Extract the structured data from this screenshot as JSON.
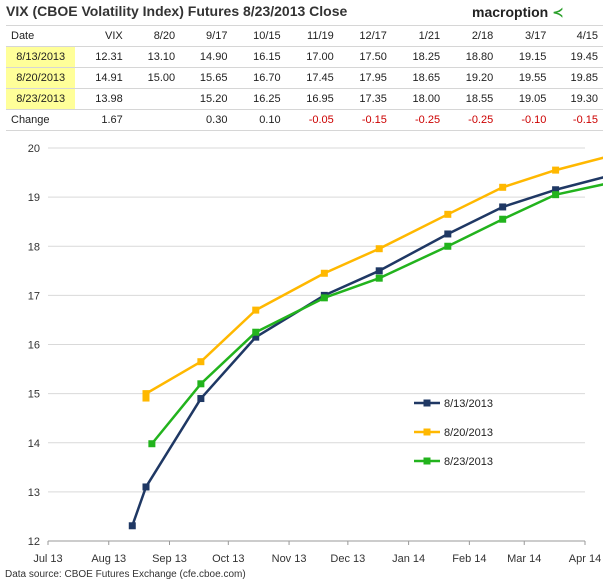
{
  "title": "VIX (CBOE Volatility Index) Futures 8/23/2013 Close",
  "brand": {
    "name": "macroption",
    "arrow": "≺"
  },
  "table": {
    "headers": [
      "Date",
      "VIX",
      "8/20",
      "9/17",
      "10/15",
      "11/19",
      "12/17",
      "1/21",
      "2/18",
      "3/17",
      "4/15"
    ],
    "rows": [
      {
        "label": "8/13/2013",
        "values": [
          "12.31",
          "13.10",
          "14.90",
          "16.15",
          "17.00",
          "17.50",
          "18.25",
          "18.80",
          "19.15",
          "19.45"
        ]
      },
      {
        "label": "8/20/2013",
        "values": [
          "14.91",
          "15.00",
          "15.65",
          "16.70",
          "17.45",
          "17.95",
          "18.65",
          "19.20",
          "19.55",
          "19.85"
        ]
      },
      {
        "label": "8/23/2013",
        "values": [
          "13.98",
          "",
          "15.20",
          "16.25",
          "16.95",
          "17.35",
          "18.00",
          "18.55",
          "19.05",
          "19.30"
        ]
      }
    ],
    "change": {
      "label": "Change",
      "values": [
        "1.67",
        "",
        "0.30",
        "0.10",
        "-0.05",
        "-0.15",
        "-0.25",
        "-0.25",
        "-0.10",
        "-0.15"
      ]
    }
  },
  "chart_data": {
    "type": "line",
    "x_ticks": [
      "Jul 13",
      "Aug 13",
      "Sep 13",
      "Oct 13",
      "Nov 13",
      "Dec 13",
      "Jan 14",
      "Feb 14",
      "Mar 14",
      "Apr 14"
    ],
    "ylim": [
      12,
      20
    ],
    "y_ticks": [
      12,
      13,
      14,
      15,
      16,
      17,
      18,
      19,
      20
    ],
    "grid": "horizontal",
    "legend_position": "lower-right",
    "series": [
      {
        "name": "8/13/2013",
        "color": "#1f3864",
        "points": [
          {
            "x": "2013-08-13",
            "y": 12.31
          },
          {
            "x": "2013-08-20",
            "y": 13.1
          },
          {
            "x": "2013-09-17",
            "y": 14.9
          },
          {
            "x": "2013-10-15",
            "y": 16.15
          },
          {
            "x": "2013-11-19",
            "y": 17.0
          },
          {
            "x": "2013-12-17",
            "y": 17.5
          },
          {
            "x": "2014-01-21",
            "y": 18.25
          },
          {
            "x": "2014-02-18",
            "y": 18.8
          },
          {
            "x": "2014-03-17",
            "y": 19.15
          },
          {
            "x": "2014-04-15",
            "y": 19.45
          }
        ]
      },
      {
        "name": "8/20/2013",
        "color": "#ffb800",
        "points": [
          {
            "x": "2013-08-20",
            "y": 14.91
          },
          {
            "x": "2013-08-20",
            "y": 15.0
          },
          {
            "x": "2013-09-17",
            "y": 15.65
          },
          {
            "x": "2013-10-15",
            "y": 16.7
          },
          {
            "x": "2013-11-19",
            "y": 17.45
          },
          {
            "x": "2013-12-17",
            "y": 17.95
          },
          {
            "x": "2014-01-21",
            "y": 18.65
          },
          {
            "x": "2014-02-18",
            "y": 19.2
          },
          {
            "x": "2014-03-17",
            "y": 19.55
          },
          {
            "x": "2014-04-15",
            "y": 19.85
          }
        ]
      },
      {
        "name": "8/23/2013",
        "color": "#22b31d",
        "points": [
          {
            "x": "2013-08-23",
            "y": 13.98
          },
          {
            "x": "2013-09-17",
            "y": 15.2
          },
          {
            "x": "2013-10-15",
            "y": 16.25
          },
          {
            "x": "2013-11-19",
            "y": 16.95
          },
          {
            "x": "2013-12-17",
            "y": 17.35
          },
          {
            "x": "2014-01-21",
            "y": 18.0
          },
          {
            "x": "2014-02-18",
            "y": 18.55
          },
          {
            "x": "2014-03-17",
            "y": 19.05
          },
          {
            "x": "2014-04-15",
            "y": 19.3
          }
        ]
      }
    ]
  },
  "source": "Data source: CBOE Futures Exchange (cfe.cboe.com)"
}
